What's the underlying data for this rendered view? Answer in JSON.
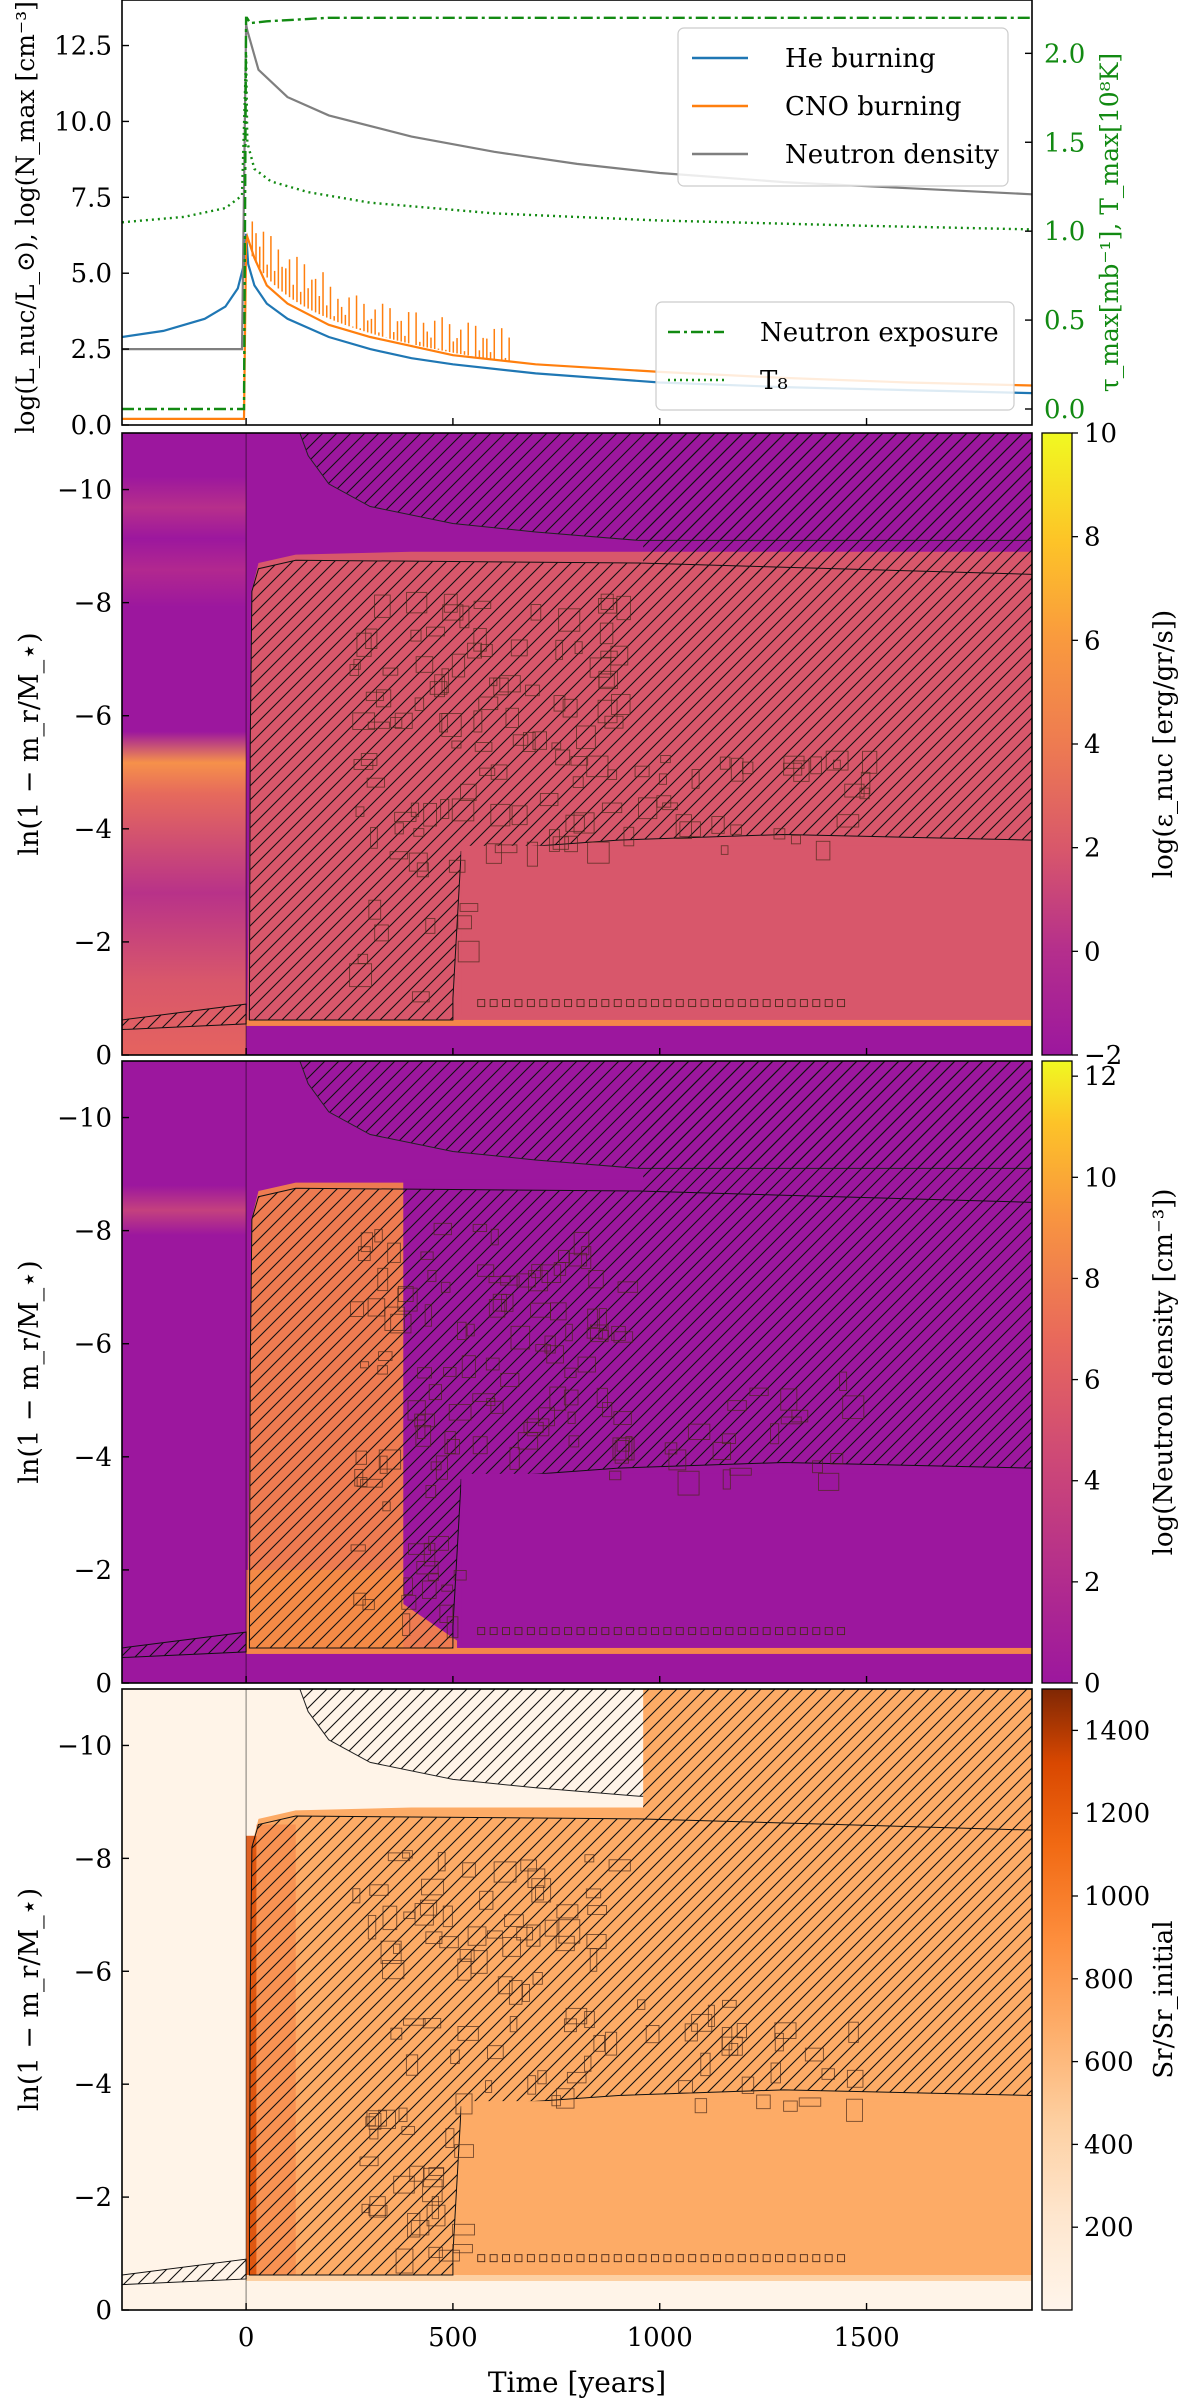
{
  "colors": {
    "he_burning": "#1f77b4",
    "cno_burning": "#ff7f0e",
    "neutron_density": "#7f7f7f",
    "right_axis": "#128a12",
    "plasma_purple": "#9c179e",
    "plasma_pink": "#d8576b",
    "plasma_orange": "#fdb42f",
    "orange_mid": "#fdab66",
    "orange_light": "#fff4e8"
  },
  "chart_data": [
    {
      "type": "line",
      "ylabel": "log(L_nuc/L_⊙), log(N_max [cm⁻³])",
      "ylabel_right": "τ_max[mb⁻¹], T_max[10⁸K]",
      "xlim": [
        -300,
        1900
      ],
      "ylim": [
        0,
        14
      ],
      "ylim_right": [
        -0.09,
        2.3
      ],
      "yticks": [
        "0.0",
        "2.5",
        "5.0",
        "7.5",
        "10.0",
        "12.5"
      ],
      "yticks_right": [
        "0.0",
        "0.5",
        "1.0",
        "1.5",
        "2.0"
      ],
      "legend_upper": [
        "He burning",
        "CNO burning",
        "Neutron density"
      ],
      "legend_lower": [
        "Neutron exposure",
        "T₈"
      ],
      "legend_placement": [
        "top-right",
        "bottom-right"
      ],
      "series": [
        {
          "name": "He burning",
          "axis": "left",
          "x": [
            -300,
            -200,
            -100,
            -50,
            -20,
            -5,
            0,
            5,
            20,
            50,
            100,
            200,
            300,
            400,
            500,
            700,
            1000,
            1300,
            1600,
            1900
          ],
          "values": [
            2.9,
            3.1,
            3.5,
            3.9,
            4.5,
            5.3,
            6.3,
            5.3,
            4.6,
            4.0,
            3.5,
            2.9,
            2.5,
            2.2,
            2.0,
            1.7,
            1.4,
            1.25,
            1.15,
            1.05
          ]
        },
        {
          "name": "CNO burning",
          "axis": "left",
          "x": [
            -300,
            -5,
            0,
            3,
            20,
            50,
            100,
            200,
            300,
            400,
            500,
            700,
            1000,
            1300,
            1600,
            1900
          ],
          "values": [
            0.2,
            0.2,
            6.0,
            6.2,
            5.5,
            4.6,
            4.0,
            3.3,
            2.9,
            2.6,
            2.3,
            2.0,
            1.75,
            1.55,
            1.4,
            1.3
          ]
        },
        {
          "name": "Neutron density",
          "axis": "left",
          "x": [
            -300,
            -100,
            -10,
            0,
            3,
            30,
            100,
            200,
            400,
            600,
            800,
            1000,
            1300,
            1600,
            1900
          ],
          "values": [
            2.5,
            2.5,
            2.5,
            13.2,
            13.0,
            11.7,
            10.8,
            10.2,
            9.5,
            9.0,
            8.6,
            8.3,
            8.0,
            7.8,
            7.6
          ]
        },
        {
          "name": "Neutron exposure",
          "axis": "right",
          "x": [
            -300,
            -5,
            0,
            2,
            10,
            50,
            200,
            500,
            1000,
            1900
          ],
          "values": [
            0.0,
            0.0,
            2.2,
            2.2,
            2.17,
            2.18,
            2.2,
            2.2,
            2.2,
            2.2
          ]
        },
        {
          "name": "T₈",
          "axis": "right",
          "x": [
            -300,
            -150,
            -50,
            -10,
            0,
            3,
            20,
            60,
            150,
            300,
            600,
            1000,
            1500,
            1900
          ],
          "values": [
            1.05,
            1.08,
            1.13,
            1.2,
            2.0,
            1.5,
            1.35,
            1.28,
            1.22,
            1.16,
            1.1,
            1.06,
            1.03,
            1.01
          ]
        }
      ]
    },
    {
      "type": "heatmap",
      "ylabel": "ln(1 − m_r/M_⋆)",
      "xlim": [
        -300,
        1900
      ],
      "ylim": [
        0,
        -11
      ],
      "yticks": [
        "0",
        "−2",
        "−4",
        "−6",
        "−8",
        "−10"
      ],
      "colorbar_label": "log(ε_nuc [erg/gr/s])",
      "colorbar_range": [
        -2,
        10
      ],
      "colorbar_ticks": [
        "−2",
        "0",
        "2",
        "4",
        "6",
        "8",
        "10"
      ]
    },
    {
      "type": "heatmap",
      "ylabel": "ln(1 − m_r/M_⋆)",
      "xlim": [
        -300,
        1900
      ],
      "ylim": [
        0,
        -11
      ],
      "yticks": [
        "0",
        "−2",
        "−4",
        "−6",
        "−8",
        "−10"
      ],
      "colorbar_label": "log(Neutron density [cm⁻³])",
      "colorbar_range": [
        0,
        12.3
      ],
      "colorbar_ticks": [
        "0",
        "2",
        "4",
        "6",
        "8",
        "10",
        "12"
      ]
    },
    {
      "type": "heatmap",
      "ylabel": "ln(1 − m_r/M_⋆)",
      "xlabel": "Time [years]",
      "xlim": [
        -300,
        1900
      ],
      "ylim": [
        0,
        -11
      ],
      "xticks": [
        "0",
        "500",
        "1000",
        "1500"
      ],
      "yticks": [
        "0",
        "−2",
        "−4",
        "−6",
        "−8",
        "−10"
      ],
      "colorbar_label": "Sr/Sr_initial",
      "colorbar_range": [
        0,
        1500
      ],
      "colorbar_ticks": [
        "200",
        "400",
        "600",
        "800",
        "1000",
        "1200",
        "1400"
      ]
    }
  ]
}
